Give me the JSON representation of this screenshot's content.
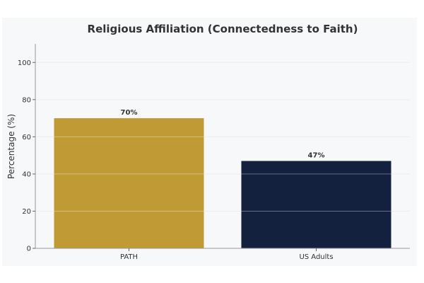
{
  "chart_data": {
    "type": "bar",
    "title": "Religious Affiliation (Connectedness to Faith)",
    "xlabel": "",
    "ylabel": "Percentage (%)",
    "categories": [
      "PATH",
      "US Adults"
    ],
    "values": [
      70,
      47
    ],
    "data_labels": [
      "70%",
      "47%"
    ],
    "ylim": [
      0,
      110
    ],
    "yticks": [
      0,
      20,
      40,
      60,
      80,
      100
    ],
    "colors": [
      "#c09a35",
      "#13203e"
    ],
    "grid": true
  }
}
